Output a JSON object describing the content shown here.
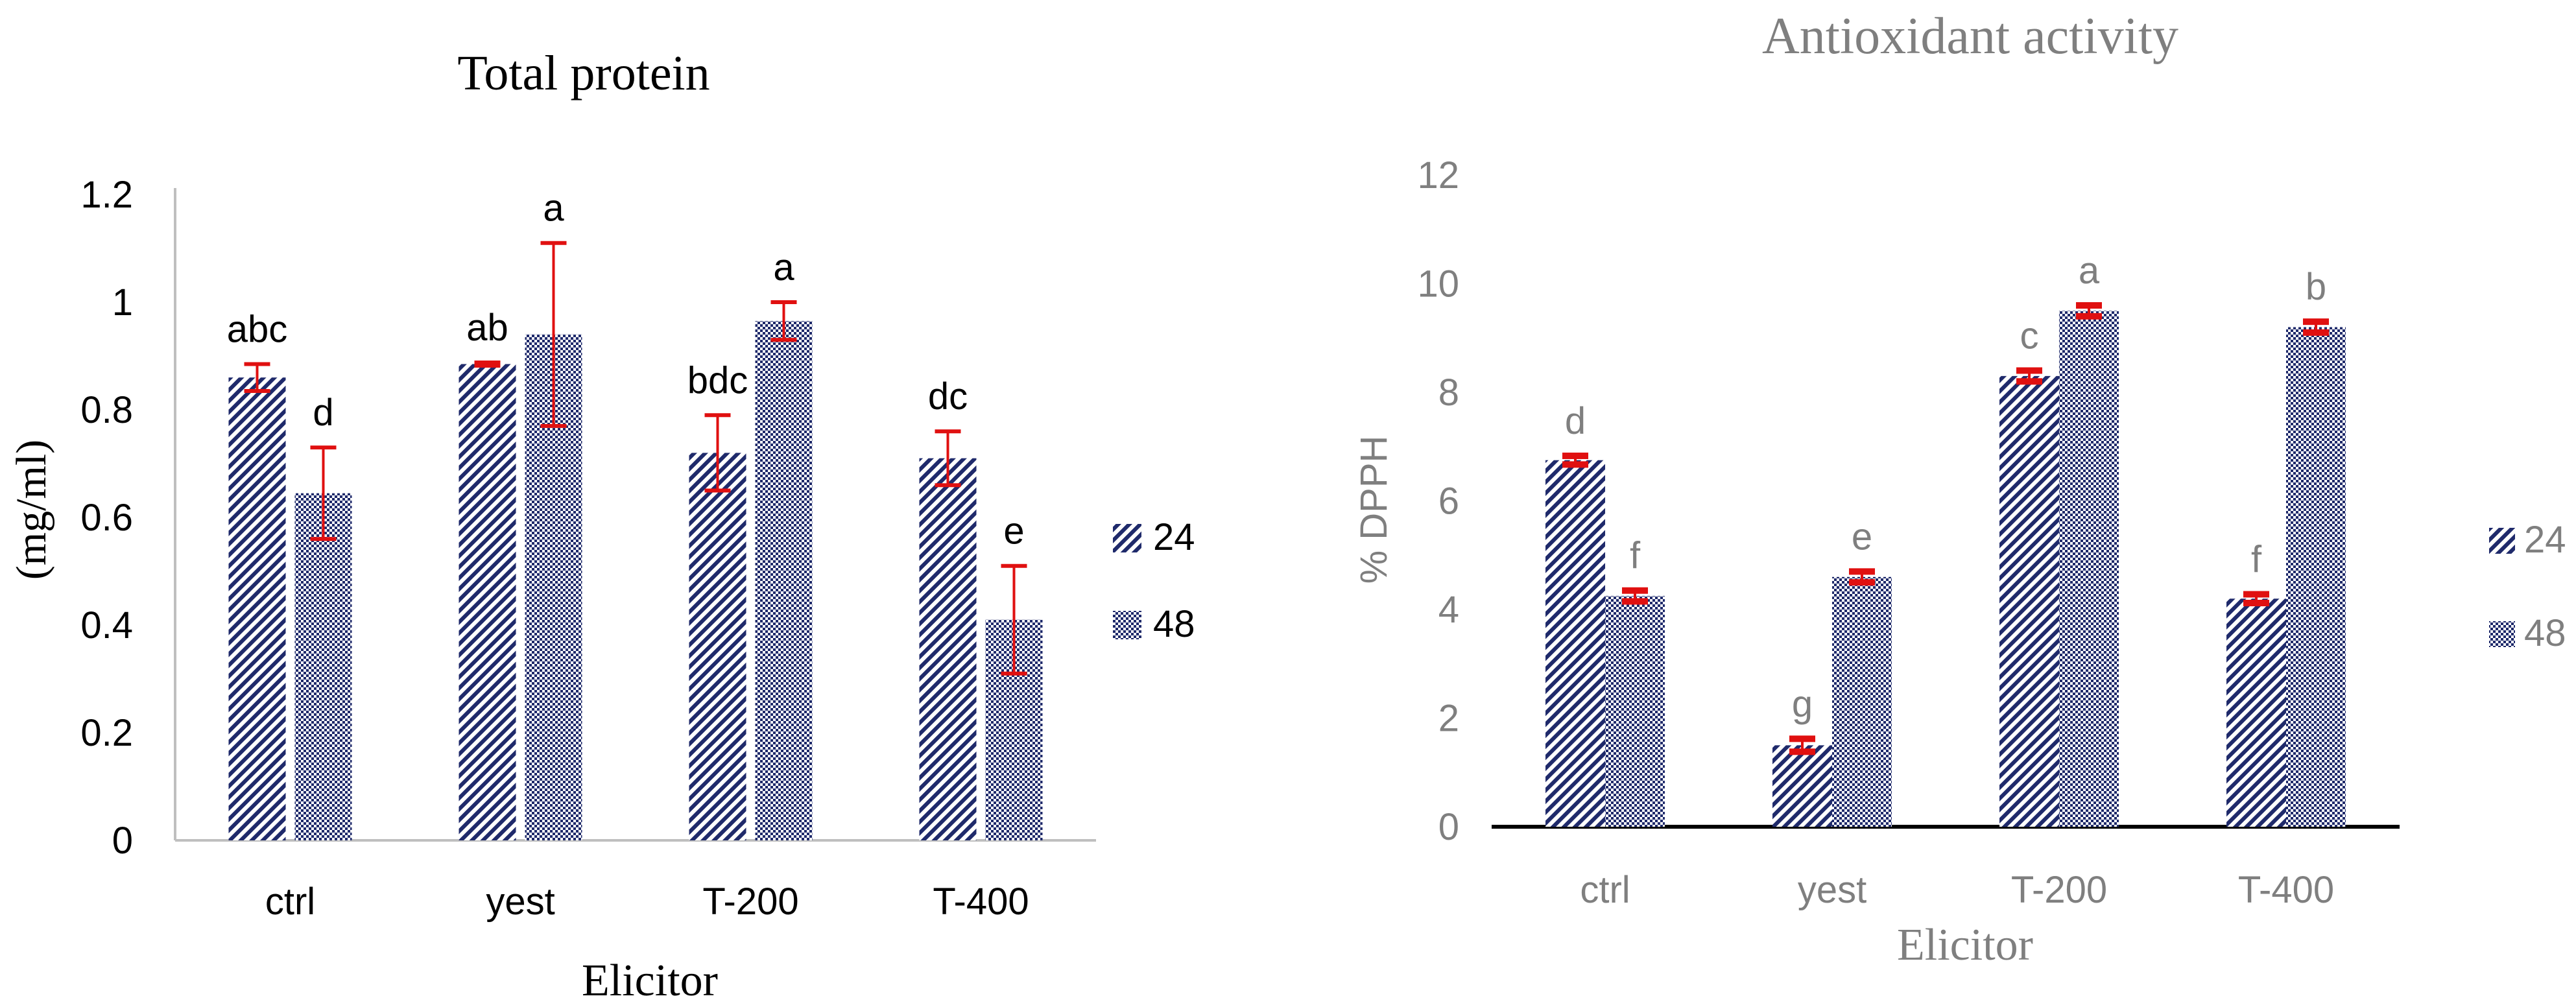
{
  "colors": {
    "bar": "#1f2a6b",
    "error": "#e01010",
    "left_text": "#000000",
    "right_text": "#7f7f7f",
    "left_axis": "#bfbfbf",
    "right_axis": "#000000"
  },
  "chart_data": [
    {
      "type": "bar",
      "title": "Total protein",
      "xlabel": "Elicitor",
      "ylabel": "(mg/ml)",
      "categories": [
        "ctrl",
        "yest",
        "T-200",
        "T-400"
      ],
      "ylim": [
        0,
        1.2
      ],
      "yticks": [
        "0",
        "0.2",
        "0.4",
        "0.6",
        "0.8",
        "1",
        "1.2"
      ],
      "legend_position": "right",
      "series": [
        {
          "name": "24",
          "pattern": "diagonal",
          "values": [
            0.86,
            0.885,
            0.72,
            0.71
          ],
          "errors": [
            0.025,
            0.003,
            0.07,
            0.05
          ],
          "letters": [
            "abc",
            "ab",
            "bdc",
            "dc"
          ]
        },
        {
          "name": "48",
          "pattern": "checker",
          "values": [
            0.645,
            0.94,
            0.965,
            0.41
          ],
          "errors": [
            0.085,
            0.17,
            0.035,
            0.1
          ],
          "letters": [
            "d",
            "a",
            "a",
            "e"
          ]
        }
      ]
    },
    {
      "type": "bar",
      "title": "Antioxidant activity",
      "xlabel": "Elicitor",
      "ylabel": "% DPPH",
      "categories": [
        "ctrl",
        "yest",
        "T-200",
        "T-400"
      ],
      "ylim": [
        0,
        12
      ],
      "yticks": [
        "0",
        "2",
        "4",
        "6",
        "8",
        "10",
        "12"
      ],
      "legend_position": "right",
      "series": [
        {
          "name": "24",
          "pattern": "diagonal",
          "values": [
            6.75,
            1.5,
            8.3,
            4.2
          ],
          "errors": [
            0.08,
            0.12,
            0.1,
            0.08
          ],
          "letters": [
            "d",
            "g",
            "c",
            "f"
          ]
        },
        {
          "name": "48",
          "pattern": "checker",
          "values": [
            4.25,
            4.6,
            9.5,
            9.2
          ],
          "errors": [
            0.1,
            0.1,
            0.1,
            0.1
          ],
          "letters": [
            "f",
            "e",
            "a",
            "b"
          ]
        }
      ]
    }
  ]
}
